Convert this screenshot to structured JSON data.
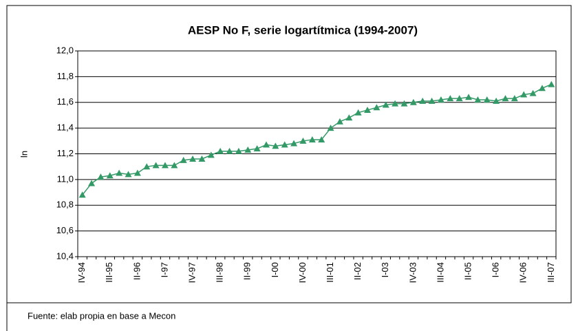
{
  "chart_data": {
    "type": "line",
    "title": "AESP No F, serie logartítmica (1994-2007)",
    "y_label": "ln",
    "note": "Fuente: elab propia en base a Mecon",
    "categories": [
      "IV-94",
      null,
      null,
      "III-95",
      null,
      null,
      "II-96",
      null,
      null,
      "I-97",
      null,
      null,
      "IV-97",
      null,
      null,
      "III-98",
      null,
      null,
      "II-99",
      null,
      null,
      "I-00",
      null,
      null,
      "IV-00",
      null,
      null,
      "III-01",
      null,
      null,
      "II-02",
      null,
      null,
      "I-03",
      null,
      null,
      "IV-03",
      null,
      null,
      "III-04",
      null,
      null,
      "II-05",
      null,
      null,
      "I-06",
      null,
      null,
      "IV-06",
      null,
      null,
      "III-07"
    ],
    "series": [
      {
        "color": "#339966",
        "values": [
          10.88,
          10.97,
          11.02,
          11.03,
          11.05,
          11.04,
          11.05,
          11.1,
          11.11,
          11.11,
          11.11,
          11.15,
          11.16,
          11.16,
          11.19,
          11.22,
          11.22,
          11.22,
          11.23,
          11.24,
          11.27,
          11.26,
          11.27,
          11.28,
          11.3,
          11.31,
          11.31,
          11.4,
          11.45,
          11.48,
          11.52,
          11.54,
          11.56,
          11.58,
          11.59,
          11.59,
          11.6,
          11.61,
          11.61,
          11.62,
          11.63,
          11.63,
          11.64,
          11.62,
          11.62,
          11.61,
          11.63,
          11.63,
          11.66,
          11.67,
          11.71,
          11.74
        ]
      }
    ],
    "ylim": [
      10.4,
      12.0
    ],
    "yticks": [
      {
        "value": 10.4,
        "label": "10,4"
      },
      {
        "value": 10.6,
        "label": "10,6"
      },
      {
        "value": 10.8,
        "label": "10,8"
      },
      {
        "value": 11.0,
        "label": "11,0"
      },
      {
        "value": 11.2,
        "label": "11,2"
      },
      {
        "value": 11.4,
        "label": "11,4"
      },
      {
        "value": 11.6,
        "label": "11,6"
      },
      {
        "value": 11.8,
        "label": "11,8"
      },
      {
        "value": 12.0,
        "label": "12,0"
      }
    ],
    "grid": true,
    "marker": "triangle"
  }
}
